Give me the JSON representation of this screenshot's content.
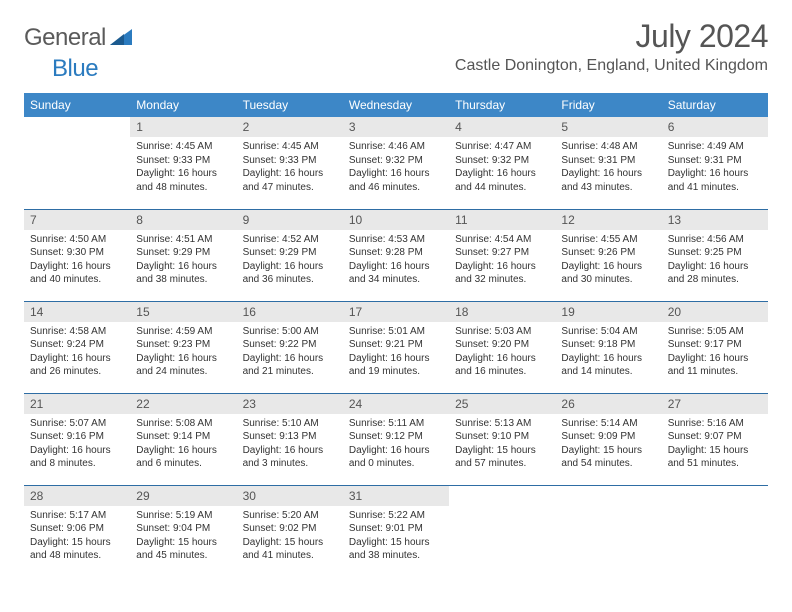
{
  "logo": {
    "word1": "General",
    "word2": "Blue"
  },
  "title": "July 2024",
  "location": "Castle Donington, England, United Kingdom",
  "colors": {
    "header_bg": "#3d87c7",
    "header_text": "#ffffff",
    "daynum_bg": "#e8e8e8",
    "border": "#2e6da4",
    "text": "#333333",
    "title_text": "#555555"
  },
  "weekdays": [
    "Sunday",
    "Monday",
    "Tuesday",
    "Wednesday",
    "Thursday",
    "Friday",
    "Saturday"
  ],
  "start_offset": 1,
  "days": [
    {
      "n": 1,
      "sr": "4:45 AM",
      "ss": "9:33 PM",
      "dl": "16 hours and 48 minutes."
    },
    {
      "n": 2,
      "sr": "4:45 AM",
      "ss": "9:33 PM",
      "dl": "16 hours and 47 minutes."
    },
    {
      "n": 3,
      "sr": "4:46 AM",
      "ss": "9:32 PM",
      "dl": "16 hours and 46 minutes."
    },
    {
      "n": 4,
      "sr": "4:47 AM",
      "ss": "9:32 PM",
      "dl": "16 hours and 44 minutes."
    },
    {
      "n": 5,
      "sr": "4:48 AM",
      "ss": "9:31 PM",
      "dl": "16 hours and 43 minutes."
    },
    {
      "n": 6,
      "sr": "4:49 AM",
      "ss": "9:31 PM",
      "dl": "16 hours and 41 minutes."
    },
    {
      "n": 7,
      "sr": "4:50 AM",
      "ss": "9:30 PM",
      "dl": "16 hours and 40 minutes."
    },
    {
      "n": 8,
      "sr": "4:51 AM",
      "ss": "9:29 PM",
      "dl": "16 hours and 38 minutes."
    },
    {
      "n": 9,
      "sr": "4:52 AM",
      "ss": "9:29 PM",
      "dl": "16 hours and 36 minutes."
    },
    {
      "n": 10,
      "sr": "4:53 AM",
      "ss": "9:28 PM",
      "dl": "16 hours and 34 minutes."
    },
    {
      "n": 11,
      "sr": "4:54 AM",
      "ss": "9:27 PM",
      "dl": "16 hours and 32 minutes."
    },
    {
      "n": 12,
      "sr": "4:55 AM",
      "ss": "9:26 PM",
      "dl": "16 hours and 30 minutes."
    },
    {
      "n": 13,
      "sr": "4:56 AM",
      "ss": "9:25 PM",
      "dl": "16 hours and 28 minutes."
    },
    {
      "n": 14,
      "sr": "4:58 AM",
      "ss": "9:24 PM",
      "dl": "16 hours and 26 minutes."
    },
    {
      "n": 15,
      "sr": "4:59 AM",
      "ss": "9:23 PM",
      "dl": "16 hours and 24 minutes."
    },
    {
      "n": 16,
      "sr": "5:00 AM",
      "ss": "9:22 PM",
      "dl": "16 hours and 21 minutes."
    },
    {
      "n": 17,
      "sr": "5:01 AM",
      "ss": "9:21 PM",
      "dl": "16 hours and 19 minutes."
    },
    {
      "n": 18,
      "sr": "5:03 AM",
      "ss": "9:20 PM",
      "dl": "16 hours and 16 minutes."
    },
    {
      "n": 19,
      "sr": "5:04 AM",
      "ss": "9:18 PM",
      "dl": "16 hours and 14 minutes."
    },
    {
      "n": 20,
      "sr": "5:05 AM",
      "ss": "9:17 PM",
      "dl": "16 hours and 11 minutes."
    },
    {
      "n": 21,
      "sr": "5:07 AM",
      "ss": "9:16 PM",
      "dl": "16 hours and 8 minutes."
    },
    {
      "n": 22,
      "sr": "5:08 AM",
      "ss": "9:14 PM",
      "dl": "16 hours and 6 minutes."
    },
    {
      "n": 23,
      "sr": "5:10 AM",
      "ss": "9:13 PM",
      "dl": "16 hours and 3 minutes."
    },
    {
      "n": 24,
      "sr": "5:11 AM",
      "ss": "9:12 PM",
      "dl": "16 hours and 0 minutes."
    },
    {
      "n": 25,
      "sr": "5:13 AM",
      "ss": "9:10 PM",
      "dl": "15 hours and 57 minutes."
    },
    {
      "n": 26,
      "sr": "5:14 AM",
      "ss": "9:09 PM",
      "dl": "15 hours and 54 minutes."
    },
    {
      "n": 27,
      "sr": "5:16 AM",
      "ss": "9:07 PM",
      "dl": "15 hours and 51 minutes."
    },
    {
      "n": 28,
      "sr": "5:17 AM",
      "ss": "9:06 PM",
      "dl": "15 hours and 48 minutes."
    },
    {
      "n": 29,
      "sr": "5:19 AM",
      "ss": "9:04 PM",
      "dl": "15 hours and 45 minutes."
    },
    {
      "n": 30,
      "sr": "5:20 AM",
      "ss": "9:02 PM",
      "dl": "15 hours and 41 minutes."
    },
    {
      "n": 31,
      "sr": "5:22 AM",
      "ss": "9:01 PM",
      "dl": "15 hours and 38 minutes."
    }
  ]
}
